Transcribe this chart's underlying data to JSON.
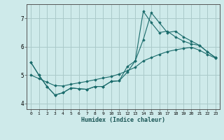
{
  "xlabel": "Humidex (Indice chaleur)",
  "background_color": "#ceeaea",
  "grid_color": "#aacaca",
  "line_color": "#1a6b6b",
  "xlim": [
    -0.5,
    23.5
  ],
  "ylim": [
    3.8,
    7.5
  ],
  "xticks": [
    0,
    1,
    2,
    3,
    4,
    5,
    6,
    7,
    8,
    9,
    10,
    11,
    12,
    13,
    14,
    15,
    16,
    17,
    18,
    19,
    20,
    21,
    22,
    23
  ],
  "yticks": [
    4,
    5,
    6,
    7
  ],
  "series": [
    {
      "x": [
        0,
        1,
        2,
        3,
        4,
        5,
        6,
        7,
        8,
        9,
        10,
        11,
        12,
        13,
        14,
        15,
        16,
        17,
        18,
        19,
        20,
        21,
        22,
        23
      ],
      "y": [
        5.45,
        5.0,
        4.6,
        4.3,
        4.38,
        4.55,
        4.52,
        4.5,
        4.6,
        4.6,
        4.78,
        4.8,
        5.3,
        5.5,
        7.25,
        6.85,
        6.5,
        6.55,
        6.35,
        6.2,
        6.1,
        6.05,
        5.82,
        5.62
      ]
    },
    {
      "x": [
        0,
        1,
        2,
        3,
        4,
        5,
        6,
        7,
        8,
        9,
        10,
        11,
        12,
        13,
        14,
        15,
        16,
        17,
        18,
        19,
        20,
        21,
        22,
        23
      ],
      "y": [
        5.0,
        4.88,
        4.75,
        4.63,
        4.62,
        4.68,
        4.73,
        4.78,
        4.84,
        4.9,
        4.95,
        5.04,
        5.15,
        5.28,
        5.5,
        5.62,
        5.73,
        5.83,
        5.89,
        5.94,
        5.98,
        5.88,
        5.73,
        5.6
      ]
    },
    {
      "x": [
        0,
        1,
        2,
        3,
        4,
        5,
        6,
        7,
        8,
        9,
        10,
        11,
        12,
        13,
        14,
        15,
        16,
        17,
        18,
        19,
        20,
        21,
        22,
        23
      ],
      "y": [
        5.45,
        5.0,
        4.6,
        4.3,
        4.38,
        4.55,
        4.52,
        4.5,
        4.6,
        4.6,
        4.78,
        4.8,
        5.1,
        5.5,
        6.25,
        7.2,
        6.85,
        6.5,
        6.55,
        6.35,
        6.2,
        6.05,
        5.82,
        5.62
      ]
    }
  ]
}
